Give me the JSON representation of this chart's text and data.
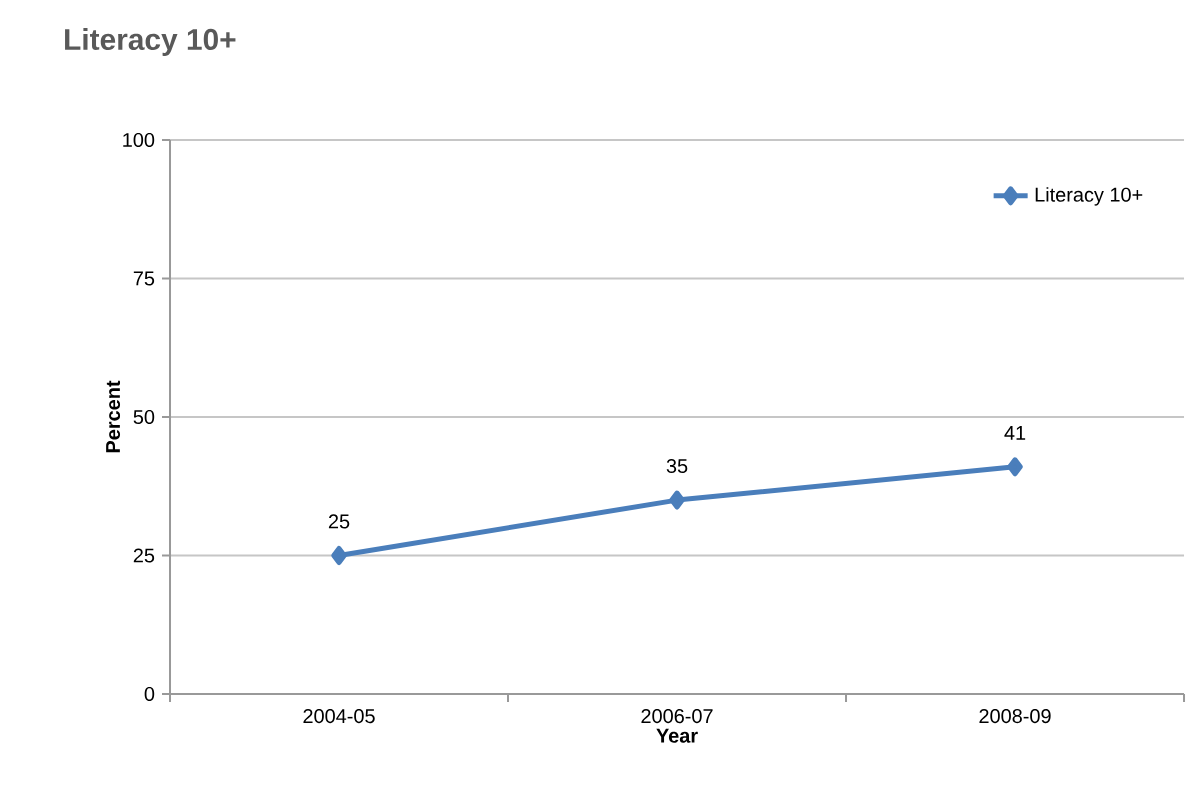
{
  "chart_data": {
    "type": "line",
    "title": "Literacy 10+",
    "xlabel": "Year",
    "ylabel": "Percent",
    "categories": [
      "2004-05",
      "2006-07",
      "2008-09"
    ],
    "series": [
      {
        "name": "Literacy 10+",
        "color": "#4a7ebb",
        "values": [
          25,
          35,
          41
        ]
      }
    ],
    "ylim": [
      0,
      100
    ],
    "yticks": [
      0,
      25,
      50,
      75,
      100
    ],
    "grid": "y",
    "legend": "top right",
    "marker": "diamond",
    "line_style": "solid",
    "data_labels": true
  }
}
